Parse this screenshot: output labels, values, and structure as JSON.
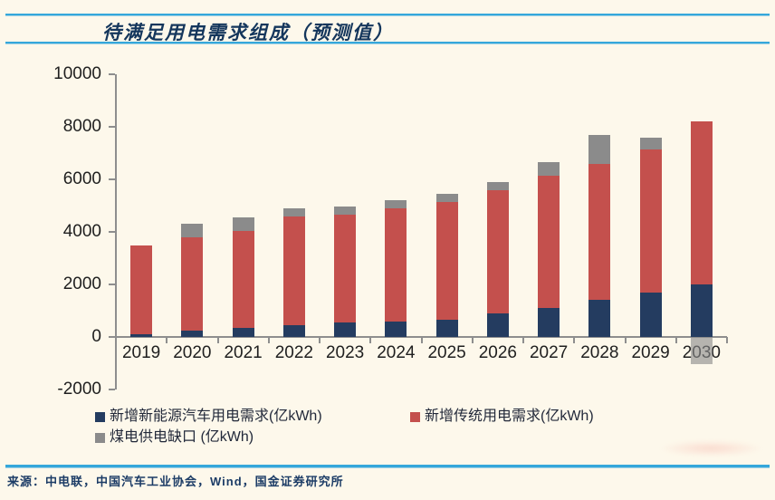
{
  "chart_data": {
    "type": "bar",
    "variant": "stacked-vertical",
    "title": "待满足用电需求组成（预测值）",
    "xlabel": "",
    "ylabel": "",
    "categories": [
      "2019",
      "2020",
      "2021",
      "2022",
      "2023",
      "2024",
      "2025",
      "2026",
      "2027",
      "2028",
      "2029",
      "2030"
    ],
    "series": [
      {
        "key": "new-energy-vehicle-demand",
        "name": "新增新能源汽车用电需求(亿kWh)",
        "color": "#243C60",
        "values": [
          100,
          250,
          350,
          450,
          550,
          600,
          650,
          900,
          1100,
          1400,
          1700,
          2000
        ]
      },
      {
        "key": "traditional-demand",
        "name": "新增传统用电需求(亿kWh)",
        "color": "#C4504D",
        "values": [
          3400,
          3550,
          3700,
          4150,
          4100,
          4300,
          4500,
          4700,
          5050,
          5200,
          5450,
          6200
        ]
      },
      {
        "key": "coal-power-supply-gap",
        "name": "煤电供电缺口 (亿kWh)",
        "color": "#8B8B8B",
        "negative_color_alpha": 0.62,
        "values": [
          0,
          500,
          500,
          300,
          300,
          300,
          300,
          300,
          500,
          1100,
          450,
          -1050
        ]
      }
    ],
    "ylim": [
      -2000,
      10000
    ],
    "yticks": [
      10000,
      8000,
      6000,
      4000,
      2000,
      0,
      -2000
    ],
    "grid": false,
    "legend_position": "bottom"
  },
  "footer": {
    "source": "来源：中电联，中国汽车工业协会，Wind，国金证券研究所"
  }
}
